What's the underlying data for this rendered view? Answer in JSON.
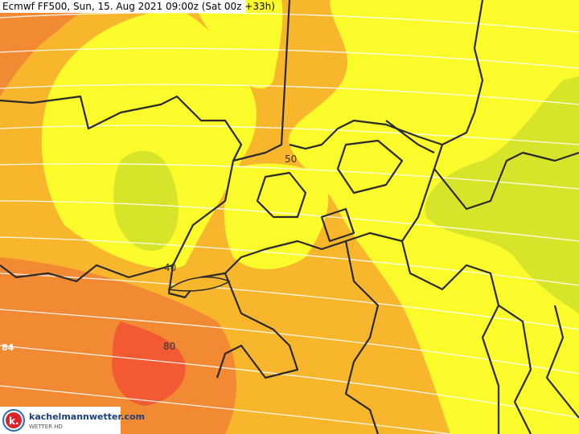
{
  "header": {
    "title": "Ecmwf FF500, Sun, 15. Aug 2021 09:00z (Sat 00z +33h)"
  },
  "contour_labels": [
    "50",
    "40",
    "80",
    "84"
  ],
  "logo": {
    "mark": "k.",
    "site": "kachelmannwetter.com",
    "tagline": "WETTER HD"
  }
}
